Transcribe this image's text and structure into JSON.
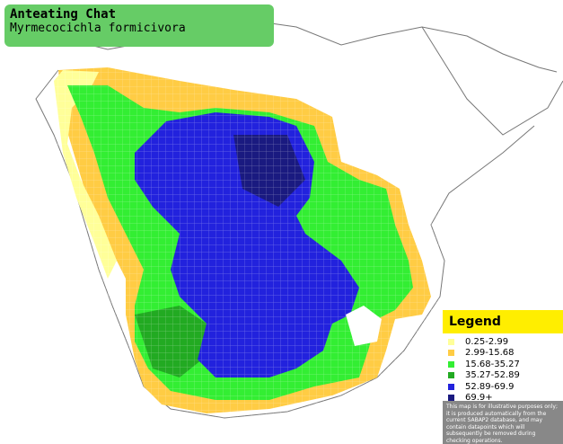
{
  "header": {
    "title": "Anteating Chat",
    "subtitle": "Myrmecocichla formicivora"
  },
  "legend": {
    "title": "Legend",
    "items": [
      {
        "label": "0.25-2.99",
        "color": "#ffff99"
      },
      {
        "label": "2.99-15.68",
        "color": "#ffcc44"
      },
      {
        "label": "15.68-35.27",
        "color": "#33ee33"
      },
      {
        "label": "35.27-52.89",
        "color": "#22aa22"
      },
      {
        "label": "52.89-69.9",
        "color": "#2222dd"
      },
      {
        "label": "69.9+",
        "color": "#1a1a80"
      }
    ],
    "disclaimer": "This map is for illustrative purposes only; it is produced automatically from the current SABAP2 database, and may contain datapoints which will subsequently be removed during checking operations."
  }
}
